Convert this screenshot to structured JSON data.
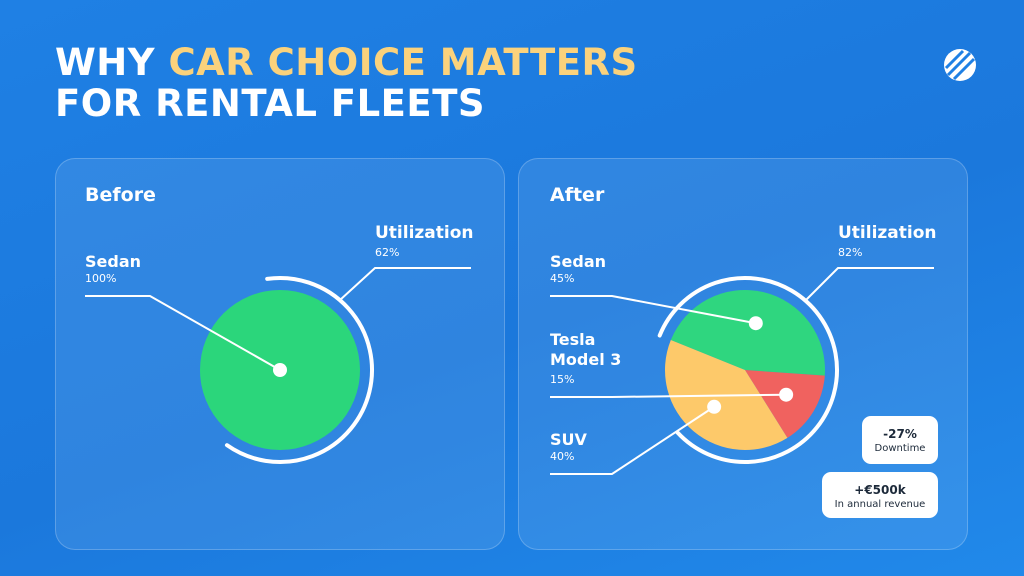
{
  "header": {
    "title_start": "WHY",
    "title_highlight": "CAR CHOICE MATTERS",
    "title_line2": "FOR RENTAL FLEETS"
  },
  "chart_data": [
    {
      "type": "pie",
      "title": "Before",
      "categories": [
        "Sedan"
      ],
      "values": [
        100
      ],
      "value_labels": [
        "100%"
      ],
      "colors": [
        "#2bd67b"
      ],
      "utilization": {
        "label": "Utilization",
        "value": 62,
        "value_label": "62%"
      }
    },
    {
      "type": "pie",
      "title": "After",
      "categories": [
        "Sedan",
        "Tesla Model 3",
        "SUV"
      ],
      "values": [
        45,
        15,
        40
      ],
      "value_labels": [
        "45%",
        "15%",
        "40%"
      ],
      "colors": [
        "#2fd67f",
        "#f0625f",
        "#fdc96a"
      ],
      "utilization": {
        "label": "Utilization",
        "value": 82,
        "value_label": "82%"
      },
      "annotations": [
        {
          "value": "-27%",
          "label": "Downtime"
        },
        {
          "value": "+€500k",
          "label": "In annual revenue"
        }
      ]
    }
  ]
}
